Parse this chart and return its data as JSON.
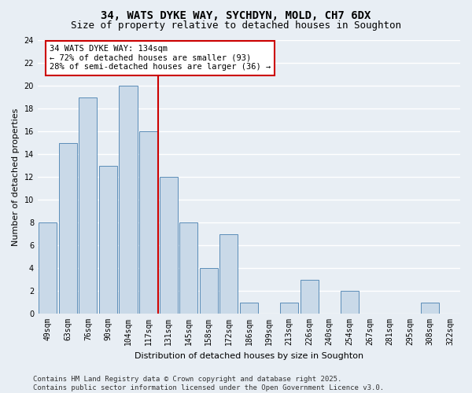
{
  "title": "34, WATS DYKE WAY, SYCHDYN, MOLD, CH7 6DX",
  "subtitle": "Size of property relative to detached houses in Soughton",
  "xlabel": "Distribution of detached houses by size in Soughton",
  "ylabel": "Number of detached properties",
  "categories": [
    "49sqm",
    "63sqm",
    "76sqm",
    "90sqm",
    "104sqm",
    "117sqm",
    "131sqm",
    "145sqm",
    "158sqm",
    "172sqm",
    "186sqm",
    "199sqm",
    "213sqm",
    "226sqm",
    "240sqm",
    "254sqm",
    "267sqm",
    "281sqm",
    "295sqm",
    "308sqm",
    "322sqm"
  ],
  "values": [
    8,
    15,
    19,
    13,
    20,
    16,
    12,
    8,
    4,
    7,
    1,
    0,
    1,
    3,
    0,
    2,
    0,
    0,
    0,
    1,
    0
  ],
  "bar_color": "#c9d9e8",
  "bar_edge_color": "#5b8db8",
  "bg_color": "#e8eef4",
  "grid_color": "#ffffff",
  "property_line_index": 6,
  "property_line_color": "#cc0000",
  "annotation_text": "34 WATS DYKE WAY: 134sqm\n← 72% of detached houses are smaller (93)\n28% of semi-detached houses are larger (36) →",
  "annotation_box_color": "#cc0000",
  "ylim": [
    0,
    24
  ],
  "yticks": [
    0,
    2,
    4,
    6,
    8,
    10,
    12,
    14,
    16,
    18,
    20,
    22,
    24
  ],
  "footer": "Contains HM Land Registry data © Crown copyright and database right 2025.\nContains public sector information licensed under the Open Government Licence v3.0.",
  "title_fontsize": 10,
  "subtitle_fontsize": 9,
  "axis_label_fontsize": 8,
  "tick_fontsize": 7,
  "annotation_fontsize": 7.5,
  "footer_fontsize": 6.5
}
